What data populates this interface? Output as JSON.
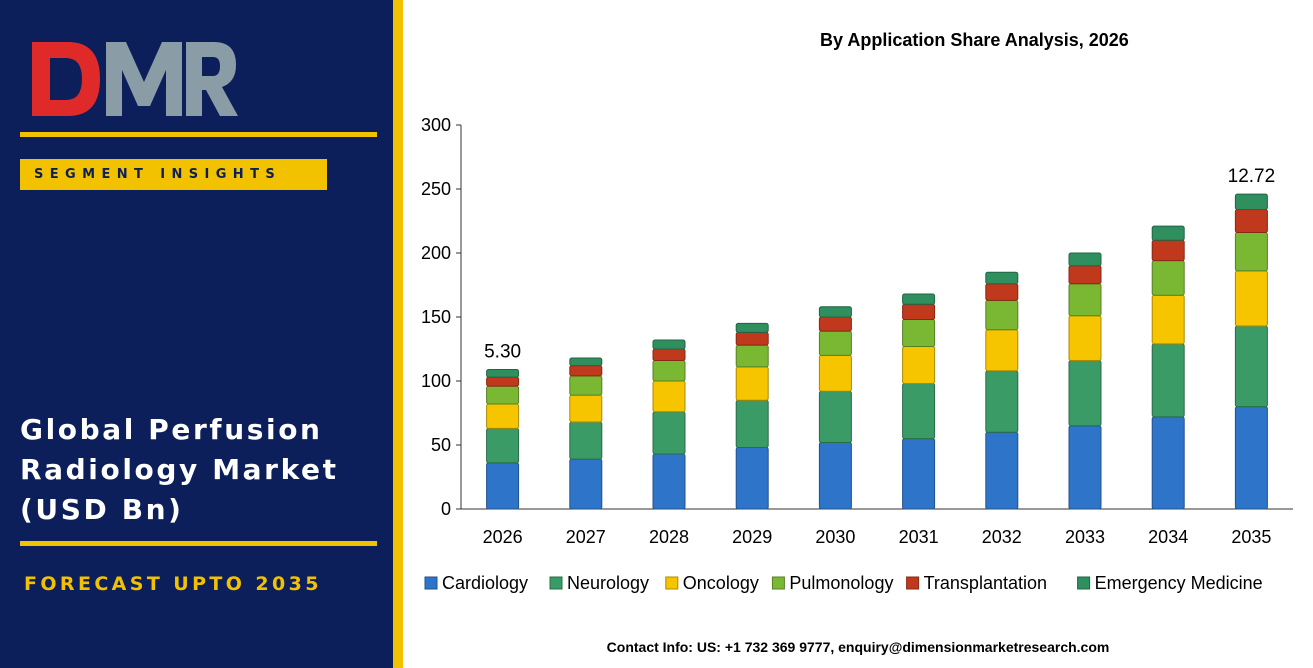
{
  "brand": {
    "logo_text": "DMR"
  },
  "left_panel": {
    "badge": "SEGMENT INSIGHTS",
    "title_lines": [
      "Global Perfusion",
      "Radiology Market",
      "(USD Bn)"
    ],
    "forecast": "FORECAST UPTO 2035"
  },
  "footer": {
    "contact": "Contact Info: US: +1 732 369 9777, enquiry@dimensionmarketresearch.com"
  },
  "colors": {
    "panel_bg": "#0d1f5a",
    "accent": "#f2c200",
    "logo_red": "#e02a2a",
    "logo_grey": "#8a9ca6"
  },
  "chart_data": {
    "type": "bar",
    "stacked": true,
    "title": "By Application Share Analysis, 2026",
    "xlabel": "",
    "ylabel": "",
    "ylim": [
      0,
      300
    ],
    "yticks": [
      0,
      50,
      100,
      150,
      200,
      250,
      300
    ],
    "grid": false,
    "legend": "bottom",
    "categories": [
      "2026",
      "2027",
      "2028",
      "2029",
      "2030",
      "2031",
      "2032",
      "2033",
      "2034",
      "2035"
    ],
    "series": [
      {
        "name": "Cardiology",
        "color": "#2e75c9",
        "values": [
          36,
          39,
          43,
          48,
          52,
          55,
          60,
          65,
          72,
          80
        ]
      },
      {
        "name": "Neurology",
        "color": "#3a9b66",
        "values": [
          27,
          29,
          33,
          37,
          40,
          43,
          48,
          51,
          57,
          63
        ]
      },
      {
        "name": "Oncology",
        "color": "#f7c400",
        "values": [
          19,
          21,
          24,
          26,
          28,
          29,
          32,
          35,
          38,
          43
        ]
      },
      {
        "name": "Pulmonology",
        "color": "#7ab833",
        "values": [
          14,
          15,
          16,
          17,
          19,
          21,
          23,
          25,
          27,
          30
        ]
      },
      {
        "name": "Transplantation",
        "color": "#c0391c",
        "values": [
          7,
          8,
          9,
          10,
          11,
          12,
          13,
          14,
          16,
          18
        ]
      },
      {
        "name": "Emergency Medicine",
        "color": "#2f8f5f",
        "values": [
          6,
          6,
          7,
          7,
          8,
          8,
          9,
          10,
          11,
          12
        ]
      }
    ],
    "annotations": [
      {
        "category": "2026",
        "text": "5.30"
      },
      {
        "category": "2035",
        "text": "12.72"
      }
    ]
  }
}
